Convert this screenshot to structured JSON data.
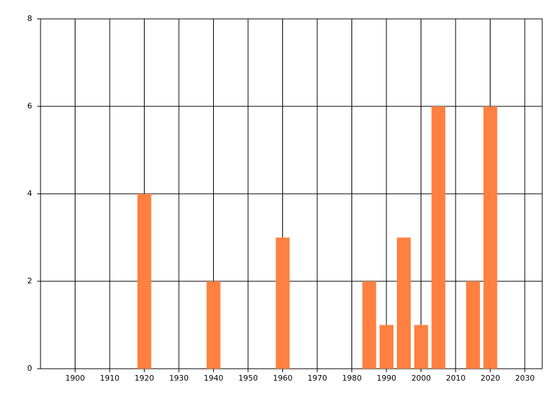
{
  "chart_data": {
    "type": "bar",
    "x": [
      1920,
      1940,
      1960,
      1985,
      1990,
      1995,
      2000,
      2005,
      2015,
      2020
    ],
    "values": [
      4,
      2,
      3,
      2,
      1,
      3,
      1,
      6,
      2,
      6
    ],
    "color": "#ff8040",
    "xlim": [
      1890,
      2035
    ],
    "xticks": [
      1900,
      1910,
      1920,
      1930,
      1940,
      1950,
      1960,
      1970,
      1980,
      1990,
      2000,
      2010,
      2020,
      2030
    ],
    "ylim": [
      0,
      8
    ],
    "yticks": [
      0,
      2,
      4,
      6,
      8
    ],
    "grid": true
  }
}
